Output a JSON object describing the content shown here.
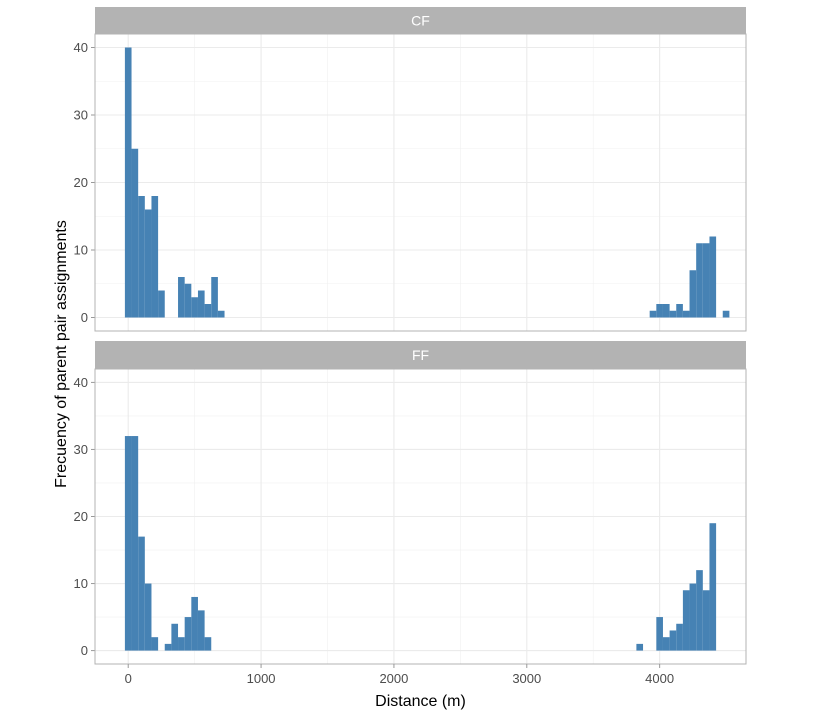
{
  "chart_data": {
    "type": "bar",
    "subtype": "faceted-histogram",
    "xlabel": "Distance (m)",
    "ylabel": "Frecuency of parent pair assignments",
    "xlim": [
      -250,
      4650
    ],
    "ylim": [
      -2,
      42
    ],
    "x_ticks": [
      0,
      1000,
      2000,
      3000,
      4000
    ],
    "y_ticks": [
      0,
      10,
      20,
      30,
      40
    ],
    "bin_width": 50,
    "grid": true,
    "bar_color": "#4682B4",
    "strip_color": "#B3B3B3",
    "facets": [
      {
        "name": "CF",
        "bins": [
          {
            "x": 0,
            "count": 40
          },
          {
            "x": 50,
            "count": 25
          },
          {
            "x": 100,
            "count": 18
          },
          {
            "x": 150,
            "count": 16
          },
          {
            "x": 200,
            "count": 18
          },
          {
            "x": 250,
            "count": 4
          },
          {
            "x": 400,
            "count": 6
          },
          {
            "x": 450,
            "count": 5
          },
          {
            "x": 500,
            "count": 3
          },
          {
            "x": 550,
            "count": 4
          },
          {
            "x": 600,
            "count": 2
          },
          {
            "x": 650,
            "count": 6
          },
          {
            "x": 700,
            "count": 1
          },
          {
            "x": 3950,
            "count": 1
          },
          {
            "x": 4000,
            "count": 2
          },
          {
            "x": 4050,
            "count": 2
          },
          {
            "x": 4100,
            "count": 1
          },
          {
            "x": 4150,
            "count": 2
          },
          {
            "x": 4200,
            "count": 1
          },
          {
            "x": 4250,
            "count": 7
          },
          {
            "x": 4300,
            "count": 11
          },
          {
            "x": 4350,
            "count": 11
          },
          {
            "x": 4400,
            "count": 12
          },
          {
            "x": 4450,
            "count": 0
          },
          {
            "x": 4500,
            "count": 1
          }
        ]
      },
      {
        "name": "FF",
        "bins": [
          {
            "x": 0,
            "count": 32
          },
          {
            "x": 50,
            "count": 32
          },
          {
            "x": 100,
            "count": 17
          },
          {
            "x": 150,
            "count": 10
          },
          {
            "x": 200,
            "count": 2
          },
          {
            "x": 300,
            "count": 1
          },
          {
            "x": 350,
            "count": 4
          },
          {
            "x": 400,
            "count": 2
          },
          {
            "x": 450,
            "count": 5
          },
          {
            "x": 500,
            "count": 8
          },
          {
            "x": 550,
            "count": 6
          },
          {
            "x": 600,
            "count": 2
          },
          {
            "x": 3850,
            "count": 1
          },
          {
            "x": 4000,
            "count": 5
          },
          {
            "x": 4050,
            "count": 2
          },
          {
            "x": 4100,
            "count": 3
          },
          {
            "x": 4150,
            "count": 4
          },
          {
            "x": 4200,
            "count": 9
          },
          {
            "x": 4250,
            "count": 10
          },
          {
            "x": 4300,
            "count": 12
          },
          {
            "x": 4350,
            "count": 9
          },
          {
            "x": 4400,
            "count": 19
          }
        ]
      }
    ]
  }
}
